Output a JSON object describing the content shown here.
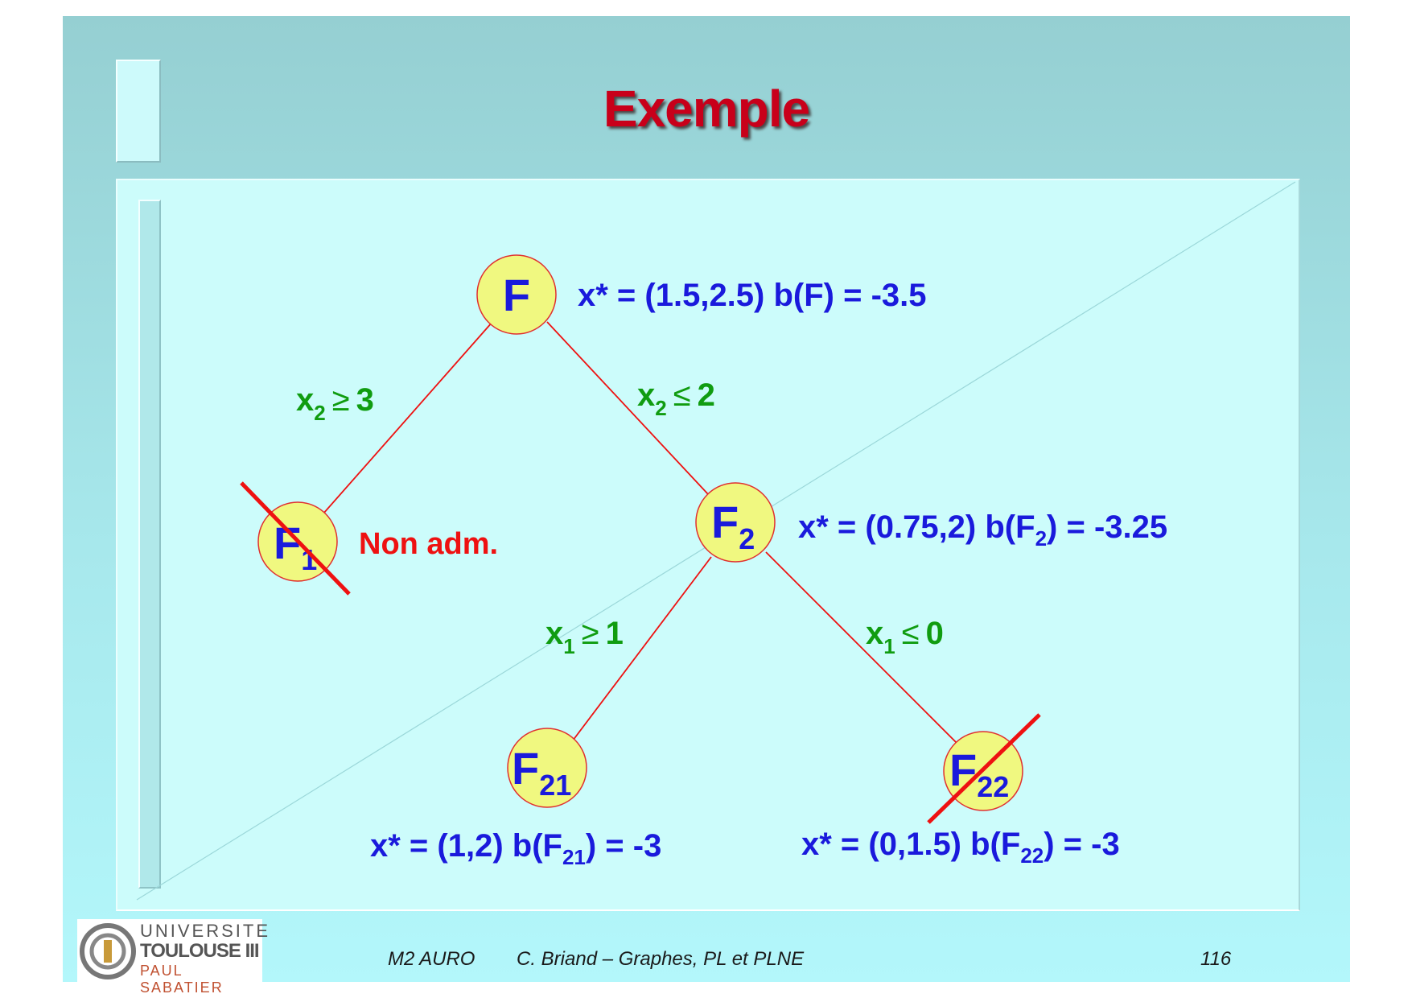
{
  "slide": {
    "title": "Exemple"
  },
  "tree": {
    "nodes": [
      {
        "id": "F",
        "base": "F",
        "sub": ""
      },
      {
        "id": "F1",
        "base": "F",
        "sub": "1"
      },
      {
        "id": "F2",
        "base": "F",
        "sub": "2"
      },
      {
        "id": "F21",
        "base": "F",
        "sub": "21"
      },
      {
        "id": "F22",
        "base": "F",
        "sub": "22"
      }
    ],
    "edge_labels": {
      "left1": {
        "var": "x",
        "sub": "2",
        "op": "≥",
        "val": "3"
      },
      "right1": {
        "var": "x",
        "sub": "2",
        "op": "≤",
        "val": "2"
      },
      "left2": {
        "var": "x",
        "sub": "1",
        "op": "≥",
        "val": "1"
      },
      "right2": {
        "var": "x",
        "sub": "1",
        "op": "≤",
        "val": "0"
      }
    },
    "info": {
      "F": "x* = (1.5,2.5) b(F) = -3.5",
      "F2": {
        "pre": "x* = (0.75,2) b(F",
        "sub": "2",
        "post": ") = -3.25"
      },
      "F21": {
        "pre": "x* = (1,2) b(F",
        "sub": "21",
        "post": ") = -3"
      },
      "F22": {
        "pre": "x* = (0,1.5) b(F",
        "sub": "22",
        "post": ") = -3"
      }
    },
    "F1_status": "Non adm.",
    "colors": {
      "node_fill": "#f0f880",
      "edge": "#ee1111",
      "text_blue": "#1a1adc",
      "text_green": "#109c10",
      "cross": "#ee1111"
    }
  },
  "footer": {
    "course": "M2 AURO",
    "author": "C. Briand – Graphes, PL et PLNE",
    "page": "116"
  },
  "logo": {
    "line1": "UNIVERSITE",
    "line2": "TOULOUSE III",
    "line3": "PAUL SABATIER"
  }
}
